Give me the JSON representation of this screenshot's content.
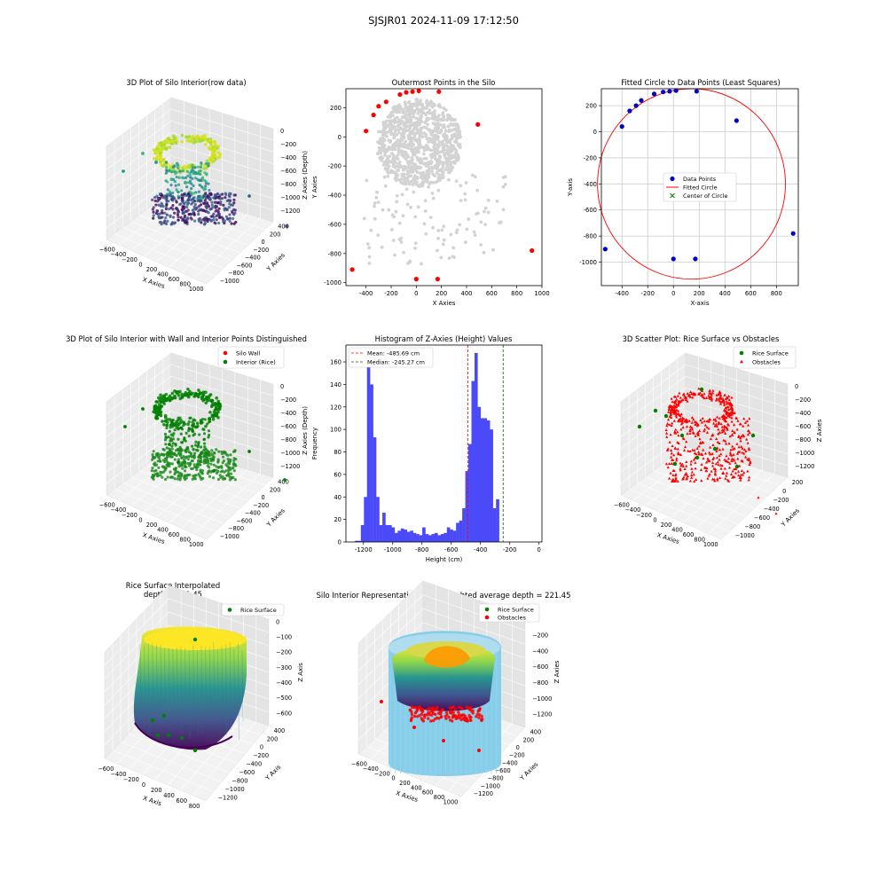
{
  "suptitle": "SJSJR01 2024-11-09 17:12:50",
  "chart_data": [
    {
      "id": "p1",
      "type": "scatter",
      "projection": "3d",
      "title": "3D Plot of Silo Interior(row data)",
      "xlabel": "X Axies",
      "ylabel": "Y Axies",
      "zlabel": "Z Axies (Depth)",
      "xticks": [
        "−600",
        "−400",
        "−200",
        "0",
        "200",
        "400",
        "600",
        "800",
        "1000"
      ],
      "yticks": [
        "400",
        "200",
        "0",
        "−200",
        "−400",
        "−600",
        "−800",
        "−1000"
      ],
      "zticks": [
        "0",
        "−200",
        "−400",
        "−600",
        "−800",
        "−1000",
        "−1200"
      ],
      "colormap": "viridis",
      "xlim": [
        -600,
        1000
      ],
      "ylim": [
        -1000,
        400
      ],
      "zlim": [
        -1250,
        0
      ]
    },
    {
      "id": "p2",
      "type": "scatter",
      "title": "Outermost Points in the Silo",
      "xlabel": "X Axies",
      "ylabel": "Y Axies",
      "xlim": [
        -560,
        1000
      ],
      "ylim": [
        -1020,
        330
      ],
      "xticks": [
        -400,
        -200,
        0,
        200,
        400,
        600,
        800,
        1000
      ],
      "yticks": [
        200,
        0,
        -200,
        -400,
        -600,
        -800,
        -1000
      ],
      "outer_points": {
        "color": "#ff0000",
        "x": [
          -510,
          -400,
          -340,
          -300,
          -240,
          -130,
          -80,
          -30,
          20,
          180,
          490,
          920,
          0,
          170
        ],
        "y": [
          -910,
          40,
          150,
          210,
          240,
          290,
          305,
          310,
          315,
          310,
          85,
          -780,
          -975,
          -975
        ]
      },
      "interior_color": "#d3d3d3"
    },
    {
      "id": "p3",
      "type": "scatter",
      "title": "Fitted Circle to Data Points (Least Squares)",
      "xlabel": "X-axis",
      "ylabel": "Y-axis",
      "xlim": [
        -560,
        970
      ],
      "ylim": [
        -1180,
        330
      ],
      "xticks": [
        -400,
        -200,
        0,
        200,
        400,
        600,
        800
      ],
      "yticks": [
        200,
        0,
        -200,
        -400,
        -600,
        -800,
        -1000
      ],
      "data_points": {
        "x": [
          -530,
          -400,
          -340,
          -290,
          -250,
          -150,
          -80,
          -30,
          20,
          180,
          490,
          930,
          0,
          170
        ],
        "y": [
          -900,
          40,
          160,
          200,
          240,
          290,
          305,
          310,
          315,
          310,
          85,
          -780,
          -975,
          -975
        ]
      },
      "circle": {
        "cx": 140,
        "cy": -400,
        "r": 730,
        "color": "#ff0000"
      },
      "legend": [
        "Data Points",
        "Fitted Circle",
        "Center of Circle"
      ],
      "grid": true
    },
    {
      "id": "p4",
      "type": "scatter",
      "projection": "3d",
      "title": "3D Plot of Silo Interior with Wall and Interior Points Distinguished",
      "xlabel": "X Axies",
      "ylabel": "Y Axies",
      "zlabel": "Z Axies (Depth)",
      "xticks": [
        "−600",
        "−400",
        "−200",
        "0",
        "200",
        "400",
        "600",
        "800",
        "1000"
      ],
      "yticks": [
        "400",
        "200",
        "0",
        "−200",
        "−400",
        "−600",
        "−800",
        "−1000"
      ],
      "zticks": [
        "0",
        "−200",
        "−400",
        "−600",
        "−800",
        "−1000",
        "−1200"
      ],
      "legend": [
        {
          "label": "Silo Wall",
          "color": "#ff0000"
        },
        {
          "label": "Interior (Rice)",
          "color": "#008000"
        }
      ]
    },
    {
      "id": "p5",
      "type": "bar",
      "subtype": "histogram",
      "title": "Histogram of Z-Axies (Height) Values",
      "xlabel": "Height (cm)",
      "ylabel": "Frequency",
      "xlim": [
        -1320,
        20
      ],
      "ylim": [
        0,
        175
      ],
      "xticks": [
        -1200,
        -1000,
        -800,
        -600,
        -400,
        -200,
        0
      ],
      "yticks": [
        0,
        20,
        40,
        60,
        80,
        100,
        120,
        140,
        160
      ],
      "bin_start": -1260,
      "bin_width": 21,
      "values": [
        1,
        1,
        15,
        40,
        170,
        140,
        93,
        40,
        15,
        26,
        15,
        15,
        13,
        8,
        10,
        12,
        11,
        9,
        10,
        8,
        7,
        6,
        13,
        7,
        6,
        7,
        8,
        6,
        7,
        8,
        13,
        11,
        10,
        17,
        19,
        30,
        63,
        87,
        143,
        168,
        120,
        110,
        110,
        108,
        100,
        30,
        38
      ],
      "bar_color": "#4a4af8",
      "mean": -485.69,
      "median": -245.27,
      "legend": [
        "Mean: -485.69 cm",
        "Median: -245.27 cm"
      ]
    },
    {
      "id": "p6",
      "type": "scatter",
      "projection": "3d",
      "title": "3D Scatter Plot: Rice Surface vs Obstacles",
      "xlabel": "X Axies",
      "ylabel": "Y Axies",
      "zlabel": "Z Axies",
      "xticks": [
        "−600",
        "−400",
        "−200",
        "0",
        "200",
        "400",
        "600",
        "800",
        "1000"
      ],
      "yticks": [
        "200",
        "0",
        "−200",
        "−400",
        "−600",
        "−800",
        "−1000"
      ],
      "zticks": [
        "0",
        "−200",
        "−400",
        "−600",
        "−800",
        "−1000",
        "−1200"
      ],
      "legend": [
        {
          "label": "Rice Surface",
          "color": "#008000"
        },
        {
          "label": "Obstacles",
          "color": "#ff0000"
        }
      ]
    },
    {
      "id": "p7",
      "type": "area",
      "projection": "3d",
      "title": "Rice Surface Interpolated\ndepth = 221.45",
      "xlabel": "X Axis",
      "ylabel": "Y Axis",
      "zlabel": "Z Axis",
      "xticks": [
        "−600",
        "−400",
        "−200",
        "0",
        "200",
        "400",
        "600",
        "800"
      ],
      "yticks": [
        "400",
        "200",
        "0",
        "−200",
        "−400",
        "−600",
        "−800",
        "−1000",
        "−1200"
      ],
      "zticks": [
        "0",
        "−100",
        "−200",
        "−300",
        "−400",
        "−500",
        "−600"
      ],
      "legend": [
        {
          "label": "Rice Surface",
          "color": "#008000"
        }
      ]
    },
    {
      "id": "p8",
      "type": "area",
      "projection": "3d",
      "title": "Silo Interior Representation using weighted average depth = 221.45",
      "xlabel": "X Axies",
      "ylabel": "Y Axies",
      "zlabel": "Z Axies",
      "xticks": [
        "−600",
        "−400",
        "−200",
        "0",
        "200",
        "400",
        "600",
        "800",
        "1000"
      ],
      "yticks": [
        "400",
        "200",
        "0",
        "−200",
        "−400",
        "−600",
        "−800",
        "−1000",
        "−1200"
      ],
      "zticks": [
        "0",
        "−200",
        "−400",
        "−600",
        "−800",
        "−1000",
        "−1200"
      ],
      "legend": [
        {
          "label": "Rice Surface",
          "color": "#008000"
        },
        {
          "label": "Obstacles",
          "color": "#ff0000"
        }
      ]
    }
  ]
}
